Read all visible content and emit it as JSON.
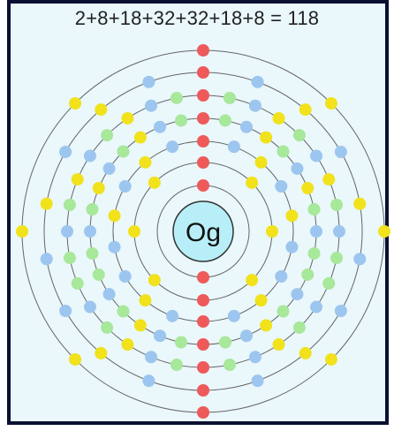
{
  "title": "2+8+18+32+32+18+8 = 118",
  "nucleus": {
    "symbol": "Og",
    "color": "#b8eef7"
  },
  "shells": [
    {
      "electrons": 2,
      "colors": {
        "red": 2,
        "yellow": 0,
        "blue": 0,
        "green": 0
      }
    },
    {
      "electrons": 8,
      "colors": {
        "red": 2,
        "yellow": 6,
        "blue": 0,
        "green": 0
      }
    },
    {
      "electrons": 18,
      "colors": {
        "red": 2,
        "yellow": 6,
        "blue": 10,
        "green": 0
      }
    },
    {
      "electrons": 32,
      "colors": {
        "red": 2,
        "yellow": 6,
        "blue": 10,
        "green": 14
      }
    },
    {
      "electrons": 32,
      "colors": {
        "red": 2,
        "yellow": 6,
        "blue": 10,
        "green": 14
      }
    },
    {
      "electrons": 18,
      "colors": {
        "red": 2,
        "yellow": 6,
        "blue": 10,
        "green": 0
      }
    },
    {
      "electrons": 8,
      "colors": {
        "red": 2,
        "yellow": 6,
        "blue": 0,
        "green": 0
      }
    }
  ],
  "palette": {
    "red": "#ee5a5a",
    "yellow": "#f1e21c",
    "blue": "#9cc6ef",
    "green": "#a7e89a",
    "shell_line": "#666666",
    "frame_border": "#0a1030",
    "background": "#eaf7fb"
  }
}
